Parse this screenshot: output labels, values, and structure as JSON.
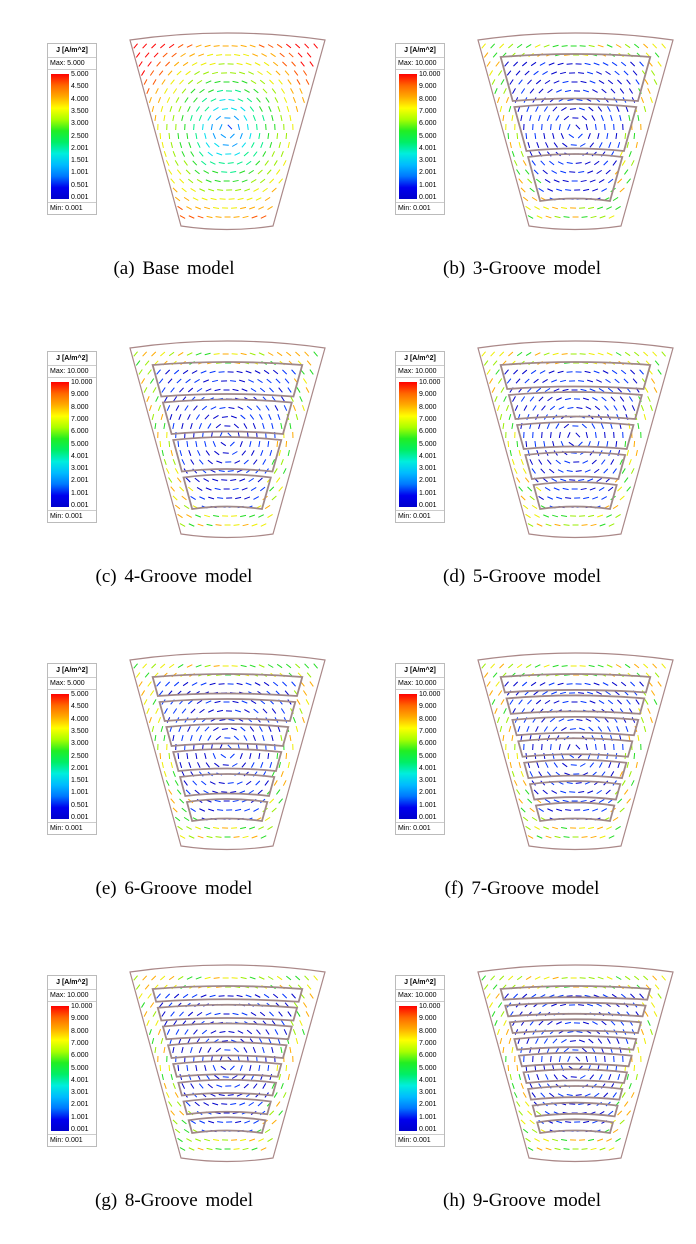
{
  "legend_title": "J [A/m^2]",
  "min_label": "Min: 0.001",
  "panels": [
    {
      "caption": "(a)  Base  model",
      "grooves": 0,
      "max_label": "Max: 5.000",
      "ticks": [
        "5.000",
        "4.500",
        "4.000",
        "3.500",
        "3.000",
        "2.500",
        "2.001",
        "1.501",
        "1.001",
        "0.501",
        "0.001"
      ]
    },
    {
      "caption": "(b)  3-Groove  model",
      "grooves": 3,
      "max_label": "Max: 10.000",
      "ticks": [
        "10.000",
        "9.000",
        "8.000",
        "7.000",
        "6.000",
        "5.000",
        "4.001",
        "3.001",
        "2.001",
        "1.001",
        "0.001"
      ]
    },
    {
      "caption": "(c)  4-Groove  model",
      "grooves": 4,
      "max_label": "Max: 10.000",
      "ticks": [
        "10.000",
        "9.000",
        "8.000",
        "7.000",
        "6.000",
        "5.000",
        "4.001",
        "3.001",
        "2.001",
        "1.001",
        "0.001"
      ]
    },
    {
      "caption": "(d)  5-Groove  model",
      "grooves": 5,
      "max_label": "Max: 10.000",
      "ticks": [
        "10.000",
        "9.000",
        "8.000",
        "7.000",
        "6.000",
        "5.000",
        "4.001",
        "3.001",
        "2.001",
        "1.001",
        "0.001"
      ]
    },
    {
      "caption": "(e)  6-Groove  model",
      "grooves": 6,
      "max_label": "Max: 5.000",
      "ticks": [
        "5.000",
        "4.500",
        "4.000",
        "3.500",
        "3.000",
        "2.500",
        "2.001",
        "1.501",
        "1.001",
        "0.501",
        "0.001"
      ]
    },
    {
      "caption": "(f)  7-Groove  model",
      "grooves": 7,
      "max_label": "Max: 10.000",
      "ticks": [
        "10.000",
        "9.000",
        "8.000",
        "7.000",
        "6.000",
        "5.000",
        "4.001",
        "3.001",
        "2.001",
        "1.001",
        "0.001"
      ]
    },
    {
      "caption": "(g)  8-Groove  model",
      "grooves": 8,
      "max_label": "Max: 10.000",
      "ticks": [
        "10.000",
        "9.000",
        "8.000",
        "7.000",
        "6.000",
        "5.000",
        "4.001",
        "3.001",
        "2.001",
        "1.001",
        "0.001"
      ]
    },
    {
      "caption": "(h)  9-Groove  model",
      "grooves": 9,
      "max_label": "Max: 10.000",
      "ticks": [
        "10.000",
        "9.000",
        "8.000",
        "7.000",
        "6.000",
        "5.000",
        "4.001",
        "3.001",
        "2.001",
        "1.001",
        "0.001"
      ]
    }
  ]
}
